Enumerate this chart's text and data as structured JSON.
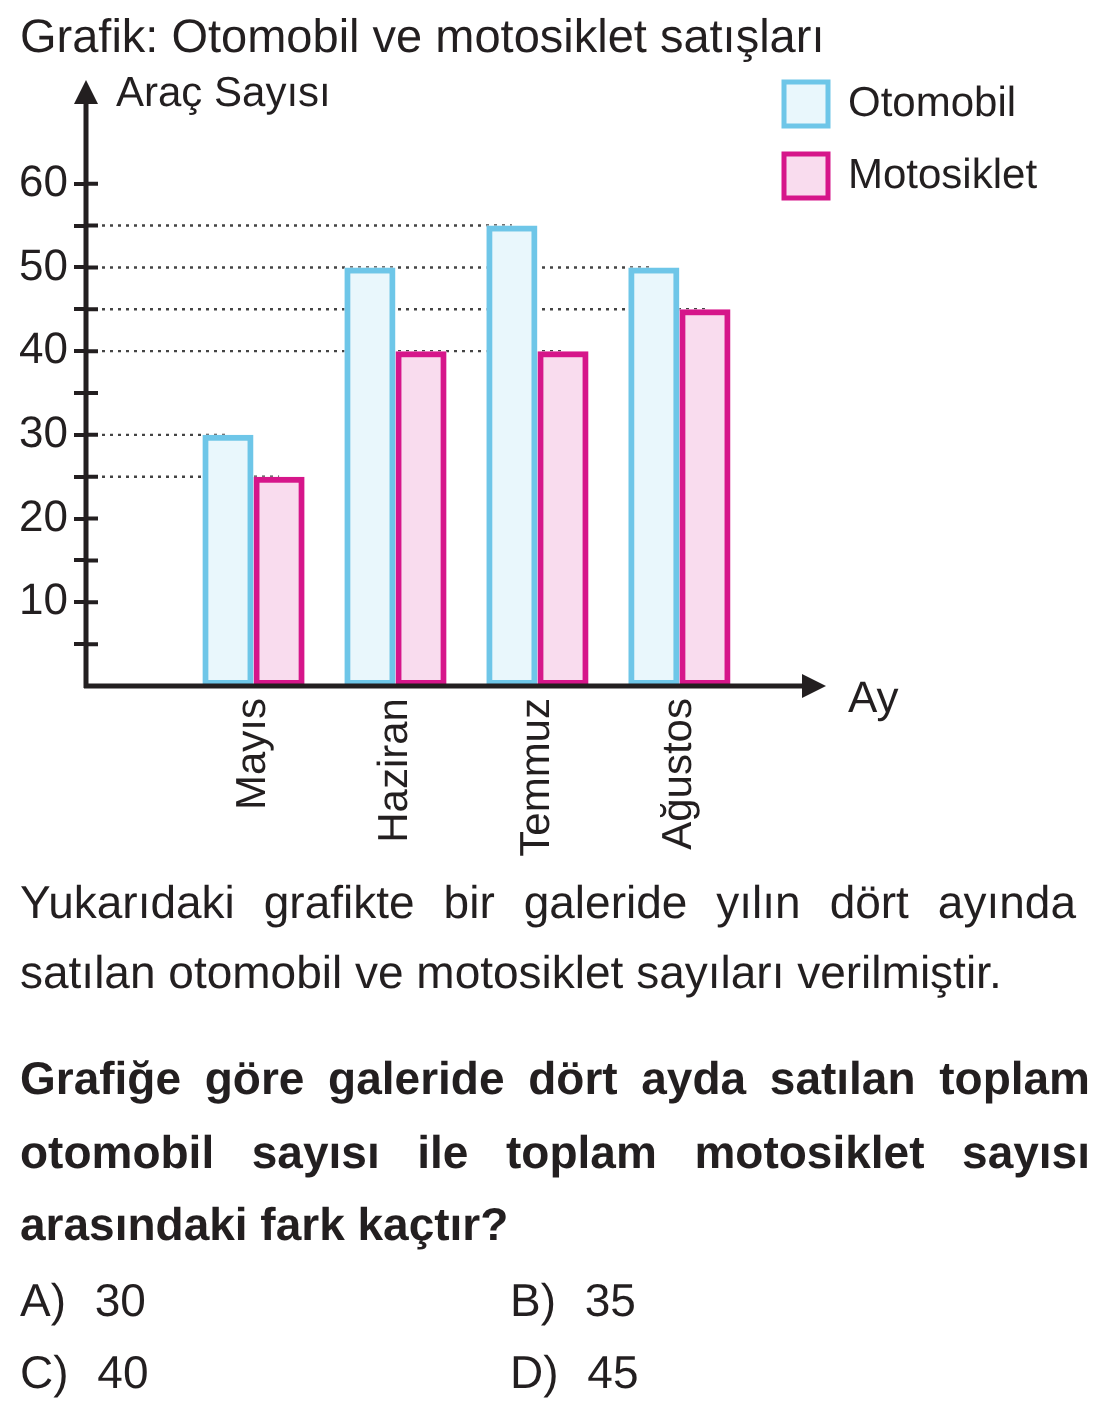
{
  "chart_data": {
    "type": "bar",
    "title": "Grafik: Otomobil ve motosiklet satışları",
    "xlabel": "Ay",
    "ylabel": "Araç Sayısı",
    "categories": [
      "Mayıs",
      "Haziran",
      "Temmuz",
      "Ağustos"
    ],
    "series": [
      {
        "name": "Otomobil",
        "color": "#6ec6e8",
        "values": [
          30,
          50,
          55,
          50
        ]
      },
      {
        "name": "Motosiklet",
        "color": "#d6168a",
        "values": [
          25,
          40,
          40,
          45
        ]
      }
    ],
    "ylim": [
      0,
      70
    ],
    "yticks": [
      {
        "value": 5,
        "label": null
      },
      10,
      {
        "value": 15,
        "label": null
      },
      20,
      {
        "value": 25,
        "label": null
      },
      30,
      {
        "value": 35,
        "label": null
      },
      40,
      {
        "value": 45,
        "label": null
      },
      50,
      {
        "value": 55,
        "label": null
      },
      60
    ],
    "legend": "top right",
    "ref_lines": [
      {
        "axis": "y",
        "value": 55,
        "line_style": "dotted",
        "color": "#444444"
      },
      {
        "axis": "y",
        "value": 50,
        "line_style": "dotted",
        "color": "#444444"
      },
      {
        "axis": "y",
        "value": 45,
        "line_style": "dotted",
        "color": "#444444"
      },
      {
        "axis": "y",
        "value": 40,
        "line_style": "dotted",
        "color": "#444444"
      },
      {
        "axis": "y",
        "value": 30,
        "line_style": "dotted",
        "color": "#444444"
      },
      {
        "axis": "y",
        "value": 25,
        "line_style": "dotted",
        "color": "#444444"
      }
    ],
    "annotations": [
      "Yukarıdaki grafikte bir galeride yılın dört ayında satılan otomobil ve motosiklet sayıları verilmiştir.",
      "Grafiğe göre galeride dört ayda satılan toplam otomobil sayısı ile toplam motosiklet sayısı arasındaki fark kaçtır?",
      "A) 30",
      "B) 35",
      "C) 40",
      "D) 45"
    ]
  }
}
